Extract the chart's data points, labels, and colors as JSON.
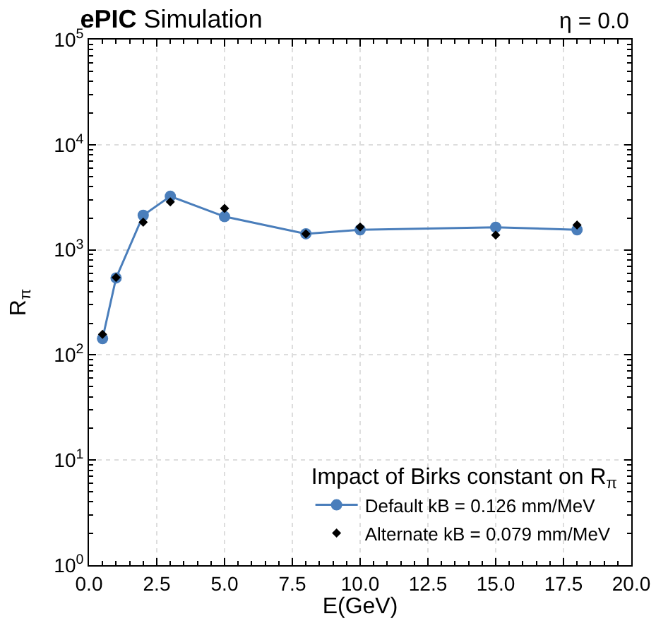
{
  "chart_data": {
    "type": "line",
    "title": "ePIC Simulation",
    "annotations": [
      "η = 0.0"
    ],
    "xlabel": "E(GeV)",
    "ylabel": "R$_{π}$",
    "legend_title": "Impact of Birks constant on R$_{π}$",
    "x": [
      0.5,
      1,
      2,
      3,
      5,
      8,
      10,
      15,
      18
    ],
    "series": [
      {
        "name": "Default kB = 0.126 mm/MeV",
        "color": "#4a7ebb",
        "marker": "circle",
        "values": [
          143,
          540,
          2130,
          3230,
          2070,
          1420,
          1550,
          1640,
          1550
        ]
      },
      {
        "name": "Alternate kB = 0.079 mm/MeV",
        "color": "#000000",
        "type": "scatter",
        "marker": "diamond",
        "values": [
          157,
          545,
          1830,
          2860,
          2480,
          1420,
          1650,
          1380,
          1720
        ]
      }
    ],
    "log": "y",
    "xlim": [
      0,
      20
    ],
    "ylim": [
      1,
      100000
    ],
    "xticks": [
      {
        "value": 0,
        "label": "0.0"
      },
      {
        "value": 2.5,
        "label": "2.5"
      },
      {
        "value": 5,
        "label": "5.0"
      },
      {
        "value": 7.5,
        "label": "7.5"
      },
      {
        "value": 10,
        "label": "10.0"
      },
      {
        "value": 12.5,
        "label": "12.5"
      },
      {
        "value": 15,
        "label": "15.0"
      },
      {
        "value": 17.5,
        "label": "17.5"
      },
      {
        "value": 20,
        "label": "20.0"
      }
    ],
    "yticks": [
      {
        "value": 1,
        "label": "10$^{0}$"
      },
      {
        "value": 10,
        "label": "10$^{1}$"
      },
      {
        "value": 100,
        "label": "10$^{2}$"
      },
      {
        "value": 1000,
        "label": "10$^{3}$"
      },
      {
        "value": 10000,
        "label": "10$^{4}$"
      },
      {
        "value": 100000,
        "label": "10$^{5}$"
      }
    ],
    "grid": true,
    "legend": "bottom right"
  }
}
